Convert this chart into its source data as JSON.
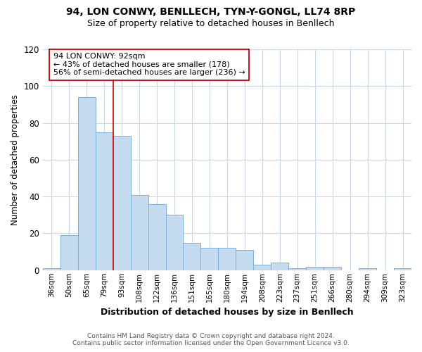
{
  "title": "94, LON CONWY, BENLLECH, TYN-Y-GONGL, LL74 8RP",
  "subtitle": "Size of property relative to detached houses in Benllech",
  "xlabel": "Distribution of detached houses by size in Benllech",
  "ylabel": "Number of detached properties",
  "categories": [
    "36sqm",
    "50sqm",
    "65sqm",
    "79sqm",
    "93sqm",
    "108sqm",
    "122sqm",
    "136sqm",
    "151sqm",
    "165sqm",
    "180sqm",
    "194sqm",
    "208sqm",
    "223sqm",
    "237sqm",
    "251sqm",
    "266sqm",
    "280sqm",
    "294sqm",
    "309sqm",
    "323sqm"
  ],
  "values": [
    1,
    19,
    94,
    75,
    73,
    41,
    36,
    30,
    15,
    12,
    12,
    11,
    3,
    4,
    1,
    2,
    2,
    0,
    1,
    0,
    1
  ],
  "bar_color": "#c5dcf0",
  "bar_edge_color": "#7ab0d8",
  "vline_index": 4,
  "vline_color": "#cc0000",
  "annotation_line1": "94 LON CONWY: 92sqm",
  "annotation_line2": "← 43% of detached houses are smaller (178)",
  "annotation_line3": "56% of semi-detached houses are larger (236) →",
  "annotation_box_edge": "#cc0000",
  "ylim": [
    0,
    120
  ],
  "yticks": [
    0,
    20,
    40,
    60,
    80,
    100,
    120
  ],
  "footer_line1": "Contains HM Land Registry data © Crown copyright and database right 2024.",
  "footer_line2": "Contains public sector information licensed under the Open Government Licence v3.0.",
  "bg_color": "#ffffff",
  "plot_bg_color": "#ffffff",
  "grid_color": "#c8d8ec"
}
